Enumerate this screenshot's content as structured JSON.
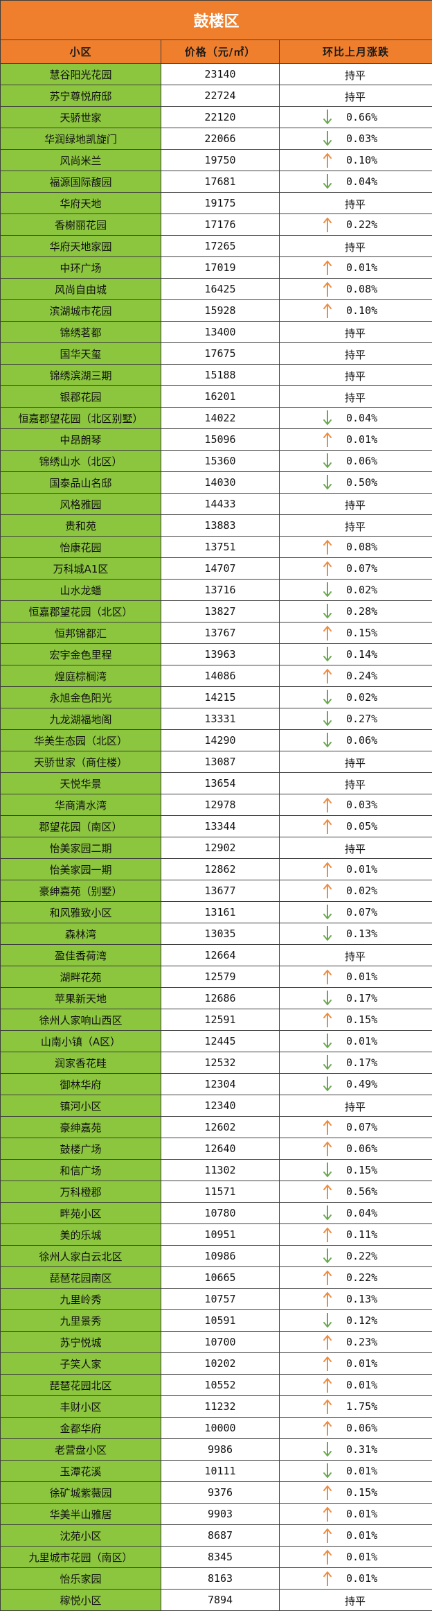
{
  "title": "鼓楼区",
  "headers": {
    "name": "小区",
    "price": "价格（元/㎡）",
    "change": "环比上月涨跌"
  },
  "colors": {
    "title_bg": "#f07f2d",
    "name_bg": "#8cc63f",
    "up_arrow": "#f08a3c",
    "down_arrow": "#6aa84f"
  },
  "flat_label": "持平",
  "rows": [
    {
      "name": "慧谷阳光花园",
      "price": "23140",
      "dir": "flat",
      "change": ""
    },
    {
      "name": "苏宁尊悦府邸",
      "price": "22724",
      "dir": "flat",
      "change": ""
    },
    {
      "name": "天骄世家",
      "price": "22120",
      "dir": "down",
      "change": "0.66%"
    },
    {
      "name": "华润绿地凯旋门",
      "price": "22066",
      "dir": "down",
      "change": "0.03%"
    },
    {
      "name": "风尚米兰",
      "price": "19750",
      "dir": "up",
      "change": "0.10%"
    },
    {
      "name": "福源国际馥园",
      "price": "17681",
      "dir": "down",
      "change": "0.04%"
    },
    {
      "name": "华府天地",
      "price": "19175",
      "dir": "flat",
      "change": ""
    },
    {
      "name": "香榭丽花园",
      "price": "17176",
      "dir": "up",
      "change": "0.22%"
    },
    {
      "name": "华府天地家园",
      "price": "17265",
      "dir": "flat",
      "change": ""
    },
    {
      "name": "中环广场",
      "price": "17019",
      "dir": "up",
      "change": "0.01%"
    },
    {
      "name": "风尚自由城",
      "price": "16425",
      "dir": "up",
      "change": "0.08%"
    },
    {
      "name": "滨湖城市花园",
      "price": "15928",
      "dir": "up",
      "change": "0.10%"
    },
    {
      "name": "锦绣茗都",
      "price": "13400",
      "dir": "flat",
      "change": ""
    },
    {
      "name": "国华天玺",
      "price": "17675",
      "dir": "flat",
      "change": ""
    },
    {
      "name": "锦绣滨湖三期",
      "price": "15188",
      "dir": "flat",
      "change": ""
    },
    {
      "name": "银郡花园",
      "price": "16201",
      "dir": "flat",
      "change": ""
    },
    {
      "name": "恒嘉郡望花园（北区别墅）",
      "price": "14022",
      "dir": "down",
      "change": "0.04%"
    },
    {
      "name": "中昂朗琴",
      "price": "15096",
      "dir": "up",
      "change": "0.01%"
    },
    {
      "name": "锦绣山水（北区）",
      "price": "15360",
      "dir": "down",
      "change": "0.06%"
    },
    {
      "name": "国泰品山名邸",
      "price": "14030",
      "dir": "down",
      "change": "0.50%"
    },
    {
      "name": "风格雅园",
      "price": "14433",
      "dir": "flat",
      "change": ""
    },
    {
      "name": "贵和苑",
      "price": "13883",
      "dir": "flat",
      "change": ""
    },
    {
      "name": "怡康花园",
      "price": "13751",
      "dir": "up",
      "change": "0.08%"
    },
    {
      "name": "万科城A1区",
      "price": "14707",
      "dir": "up",
      "change": "0.07%"
    },
    {
      "name": "山水龙蟠",
      "price": "13716",
      "dir": "down",
      "change": "0.02%"
    },
    {
      "name": "恒嘉郡望花园（北区）",
      "price": "13827",
      "dir": "down",
      "change": "0.28%"
    },
    {
      "name": "恒邦锦都汇",
      "price": "13767",
      "dir": "up",
      "change": "0.15%"
    },
    {
      "name": "宏宇金色里程",
      "price": "13963",
      "dir": "down",
      "change": "0.14%"
    },
    {
      "name": "煌庭棕榈湾",
      "price": "14086",
      "dir": "up",
      "change": "0.24%"
    },
    {
      "name": "永旭金色阳光",
      "price": "14215",
      "dir": "down",
      "change": "0.02%"
    },
    {
      "name": "九龙湖福地阁",
      "price": "13331",
      "dir": "down",
      "change": "0.27%"
    },
    {
      "name": "华美生态园（北区）",
      "price": "14290",
      "dir": "down",
      "change": "0.06%"
    },
    {
      "name": "天骄世家（商住楼）",
      "price": "13087",
      "dir": "flat",
      "change": ""
    },
    {
      "name": "天悦华景",
      "price": "13654",
      "dir": "flat",
      "change": ""
    },
    {
      "name": "华商清水湾",
      "price": "12978",
      "dir": "up",
      "change": "0.03%"
    },
    {
      "name": "郡望花园（南区）",
      "price": "13344",
      "dir": "up",
      "change": "0.05%"
    },
    {
      "name": "怡美家园二期",
      "price": "12902",
      "dir": "flat",
      "change": ""
    },
    {
      "name": "怡美家园一期",
      "price": "12862",
      "dir": "up",
      "change": "0.01%"
    },
    {
      "name": "豪绅嘉苑（别墅）",
      "price": "13677",
      "dir": "up",
      "change": "0.02%"
    },
    {
      "name": "和风雅致小区",
      "price": "13161",
      "dir": "down",
      "change": "0.07%"
    },
    {
      "name": "森林湾",
      "price": "13035",
      "dir": "down",
      "change": "0.13%"
    },
    {
      "name": "盈佳香荷湾",
      "price": "12664",
      "dir": "flat",
      "change": ""
    },
    {
      "name": "湖畔花苑",
      "price": "12579",
      "dir": "up",
      "change": "0.01%"
    },
    {
      "name": "苹果新天地",
      "price": "12686",
      "dir": "down",
      "change": "0.17%"
    },
    {
      "name": "徐州人家响山西区",
      "price": "12591",
      "dir": "up",
      "change": "0.15%"
    },
    {
      "name": "山南小镇（A区）",
      "price": "12445",
      "dir": "down",
      "change": "0.01%"
    },
    {
      "name": "润家香花畦",
      "price": "12532",
      "dir": "down",
      "change": "0.17%"
    },
    {
      "name": "御林华府",
      "price": "12304",
      "dir": "down",
      "change": "0.49%"
    },
    {
      "name": "镇河小区",
      "price": "12340",
      "dir": "flat",
      "change": ""
    },
    {
      "name": "豪绅嘉苑",
      "price": "12602",
      "dir": "up",
      "change": "0.07%"
    },
    {
      "name": "鼓楼广场",
      "price": "12640",
      "dir": "up",
      "change": "0.06%"
    },
    {
      "name": "和信广场",
      "price": "11302",
      "dir": "down",
      "change": "0.15%"
    },
    {
      "name": "万科橙郡",
      "price": "11571",
      "dir": "up",
      "change": "0.56%"
    },
    {
      "name": "畔苑小区",
      "price": "10780",
      "dir": "down",
      "change": "0.04%"
    },
    {
      "name": "美的乐城",
      "price": "10951",
      "dir": "up",
      "change": "0.11%"
    },
    {
      "name": "徐州人家白云北区",
      "price": "10986",
      "dir": "down",
      "change": "0.22%"
    },
    {
      "name": "琵琶花园南区",
      "price": "10665",
      "dir": "up",
      "change": "0.22%"
    },
    {
      "name": "九里岭秀",
      "price": "10757",
      "dir": "up",
      "change": "0.13%"
    },
    {
      "name": "九里景秀",
      "price": "10591",
      "dir": "down",
      "change": "0.12%"
    },
    {
      "name": "苏宁悦城",
      "price": "10700",
      "dir": "up",
      "change": "0.23%"
    },
    {
      "name": "子笑人家",
      "price": "10202",
      "dir": "up",
      "change": "0.01%"
    },
    {
      "name": "琵琶花园北区",
      "price": "10552",
      "dir": "up",
      "change": "0.01%"
    },
    {
      "name": "丰财小区",
      "price": "11232",
      "dir": "up",
      "change": "1.75%"
    },
    {
      "name": "金都华府",
      "price": "10000",
      "dir": "up",
      "change": "0.06%"
    },
    {
      "name": "老营盘小区",
      "price": "9986",
      "dir": "down",
      "change": "0.31%"
    },
    {
      "name": "玉潭花溪",
      "price": "10111",
      "dir": "down",
      "change": "0.01%"
    },
    {
      "name": "徐矿城紫薇园",
      "price": "9376",
      "dir": "up",
      "change": "0.15%"
    },
    {
      "name": "华美半山雅居",
      "price": "9903",
      "dir": "up",
      "change": "0.01%"
    },
    {
      "name": "沈苑小区",
      "price": "8687",
      "dir": "up",
      "change": "0.01%"
    },
    {
      "name": "九里城市花园（南区）",
      "price": "8345",
      "dir": "up",
      "change": "0.01%"
    },
    {
      "name": "怡乐家园",
      "price": "8163",
      "dir": "up",
      "change": "0.01%"
    },
    {
      "name": "稼悦小区",
      "price": "7894",
      "dir": "flat",
      "change": ""
    }
  ]
}
